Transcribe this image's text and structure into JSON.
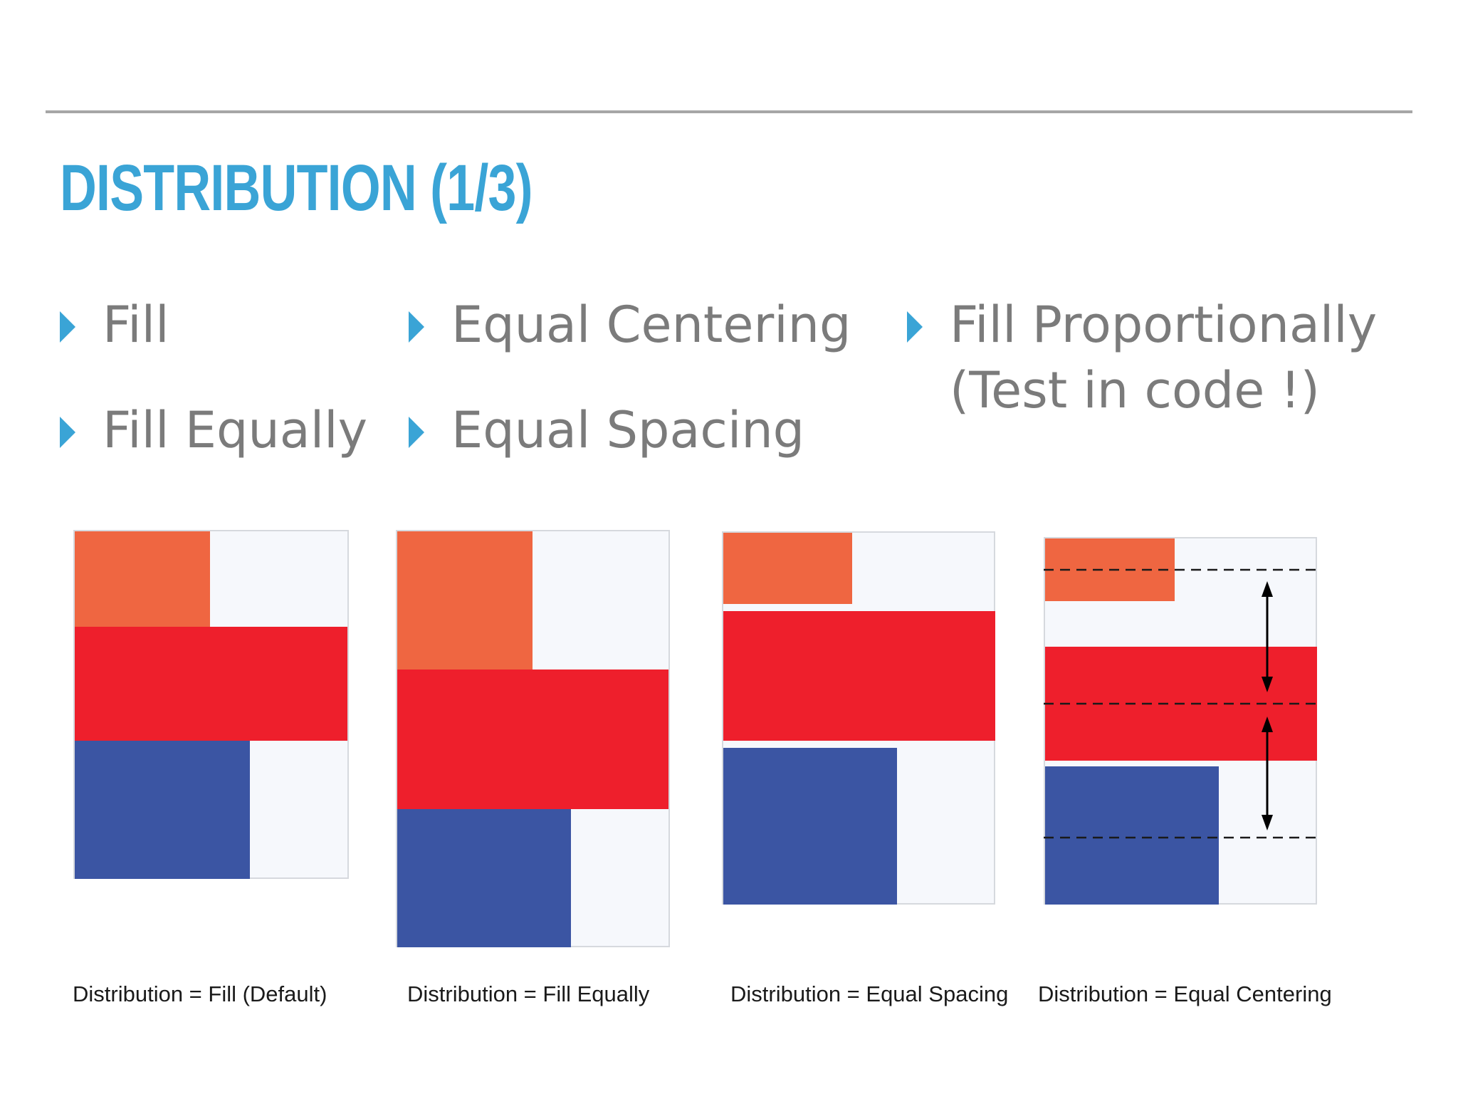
{
  "slide": {
    "title": "DISTRIBUTION (1/3)",
    "accent_color": "#3aa4d6",
    "bullets_col1": [
      "Fill",
      "Fill Equally"
    ],
    "bullets_col2": [
      "Equal Centering",
      "Equal Spacing"
    ],
    "bullets_col3": [
      [
        "Fill Proportionally",
        "(Test in code !)"
      ]
    ],
    "bullet_icon": "triangle-right-icon"
  },
  "diagrams": [
    {
      "caption": "Distribution = Fill (Default)"
    },
    {
      "caption": "Distribution = Fill Equally"
    },
    {
      "caption": "Distribution = Equal Spacing"
    },
    {
      "caption": "Distribution = Equal Centering"
    }
  ],
  "colors": {
    "orange": "#ef6641",
    "red": "#ee1f2c",
    "blue": "#3b55a3",
    "panel": "#f6f8fc"
  }
}
